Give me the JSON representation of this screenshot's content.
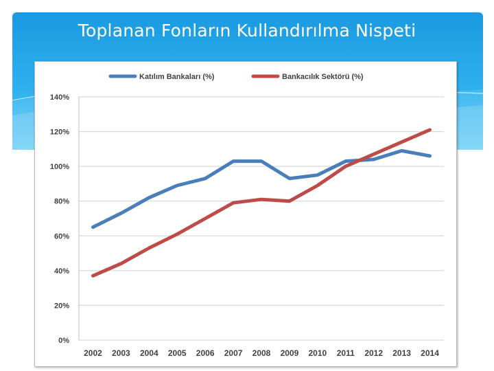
{
  "slide": {
    "title": "Toplanan Fonların Kullandırılma Nispeti"
  },
  "colors": {
    "banner": "#1a9ae0",
    "series_1": "#4a7ebb",
    "series_2": "#be4b48",
    "grid": "#d0d0d0",
    "axis_text": "#404040"
  },
  "chart_data": {
    "type": "line",
    "title": "",
    "xlabel": "",
    "ylabel": "",
    "x": [
      "2002",
      "2003",
      "2004",
      "2005",
      "2006",
      "2007",
      "2008",
      "2009",
      "2010",
      "2011",
      "2012",
      "2013",
      "2014"
    ],
    "ylim": [
      0,
      140
    ],
    "yticks": [
      0,
      20,
      40,
      60,
      80,
      100,
      120,
      140
    ],
    "ytick_labels": [
      "0%",
      "20%",
      "40%",
      "60%",
      "80%",
      "100%",
      "120%",
      "140%"
    ],
    "grid": true,
    "legend_position": "top",
    "series": [
      {
        "name": "Katılım Bankaları (%)",
        "color": "#4a7ebb",
        "values": [
          65,
          73,
          82,
          89,
          93,
          103,
          103,
          93,
          95,
          103,
          104,
          109,
          106
        ]
      },
      {
        "name": "Bankacılık Sektörü (%)",
        "color": "#be4b48",
        "values": [
          37,
          44,
          53,
          61,
          70,
          79,
          81,
          80,
          89,
          100,
          107,
          114,
          121
        ]
      }
    ]
  }
}
